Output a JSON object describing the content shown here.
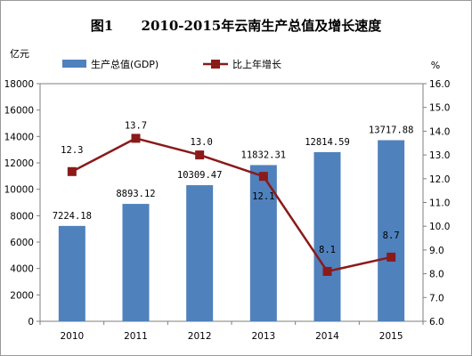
{
  "chart_data": {
    "type": "bar",
    "title": "图1      2010-2015年云南生产总值及增长速度",
    "categories": [
      "2010",
      "2011",
      "2012",
      "2013",
      "2014",
      "2015"
    ],
    "y_left": {
      "unit": "亿元",
      "min": 0,
      "max": 18000,
      "step": 2000
    },
    "y_right": {
      "unit": "%",
      "min": 6.0,
      "max": 16.0,
      "step": 1.0
    },
    "series": [
      {
        "name": "生产总值(GDP)",
        "type": "bar",
        "axis": "left",
        "color": "#4f81bd",
        "values": [
          7224.18,
          8893.12,
          10309.47,
          11832.31,
          12814.59,
          13717.88
        ],
        "labels": [
          "7224.18",
          "8893.12",
          "10309.47",
          "11832.31",
          "12814.59",
          "13717.88"
        ]
      },
      {
        "name": "比上年增长",
        "type": "line",
        "axis": "right",
        "color": "#8b1a1a",
        "values": [
          12.3,
          13.7,
          13.0,
          12.1,
          8.1,
          8.7
        ],
        "labels": [
          "12.3",
          "13.7",
          "13.0",
          "12.1",
          "8.1",
          "8.7"
        ]
      }
    ],
    "legend_position": "top",
    "grid": false
  }
}
